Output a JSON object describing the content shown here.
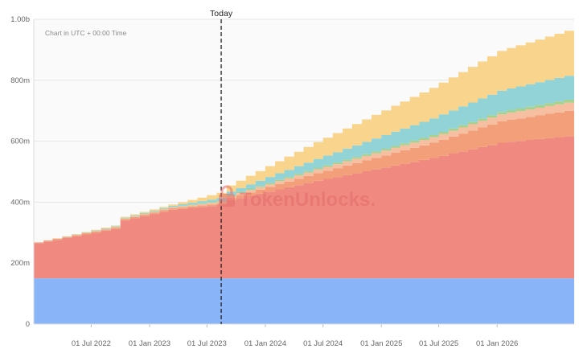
{
  "chart_data": {
    "type": "area",
    "stacked": true,
    "note": "Chart in UTC + 00:00 Time",
    "marker_label": "Today",
    "marker_x": "2023-08-15",
    "watermark": "TokenUnlocks.",
    "x_ticks": [
      "01 Jul 2022",
      "01 Jan 2023",
      "01 Jul 2023",
      "01 Jan 2024",
      "01 Jul 2024",
      "01 Jan 2025",
      "01 Jul 2025",
      "01 Jan 2026"
    ],
    "y_ticks": [
      "0",
      "200m",
      "400m",
      "600m",
      "800m",
      "1.00b"
    ],
    "ylim": [
      0,
      1000
    ],
    "x_range": [
      "2022-01-01",
      "2026-09-01"
    ],
    "grid": true,
    "series": [
      {
        "key": "blue",
        "color": "#8ab4f8",
        "points": [
          [
            "2022-01-01",
            150
          ],
          [
            "2026-09-01",
            150
          ]
        ]
      },
      {
        "key": "red",
        "color": "#f08a80",
        "points": [
          [
            "2022-01-01",
            115
          ],
          [
            "2022-09-15",
            165
          ],
          [
            "2022-10-01",
            190
          ],
          [
            "2023-03-01",
            225
          ],
          [
            "2023-08-15",
            242
          ],
          [
            "2023-08-25",
            255
          ],
          [
            "2024-06-01",
            320
          ],
          [
            "2025-06-01",
            395
          ],
          [
            "2026-01-01",
            445
          ],
          [
            "2026-09-01",
            470
          ]
        ]
      },
      {
        "key": "orange",
        "color": "#f3a07a",
        "points": [
          [
            "2022-01-01",
            3
          ],
          [
            "2023-03-01",
            5
          ],
          [
            "2023-08-15",
            5
          ],
          [
            "2023-08-25",
            7
          ],
          [
            "2024-06-01",
            25
          ],
          [
            "2025-06-01",
            50
          ],
          [
            "2026-01-01",
            70
          ],
          [
            "2026-09-01",
            85
          ]
        ]
      },
      {
        "key": "peach",
        "color": "#f6bfa2",
        "points": [
          [
            "2022-01-01",
            0
          ],
          [
            "2023-03-01",
            3
          ],
          [
            "2023-08-15",
            6
          ],
          [
            "2024-06-01",
            12
          ],
          [
            "2025-06-01",
            18
          ],
          [
            "2026-01-01",
            23
          ],
          [
            "2026-09-01",
            27
          ]
        ]
      },
      {
        "key": "green",
        "color": "#a9d18e",
        "points": [
          [
            "2022-01-01",
            0
          ],
          [
            "2023-03-01",
            2
          ],
          [
            "2023-08-15",
            3
          ],
          [
            "2024-06-01",
            5
          ],
          [
            "2025-06-01",
            7
          ],
          [
            "2026-01-01",
            8
          ],
          [
            "2026-09-01",
            10
          ]
        ]
      },
      {
        "key": "teal",
        "color": "#92d3d7",
        "points": [
          [
            "2022-01-01",
            0
          ],
          [
            "2023-03-01",
            3
          ],
          [
            "2023-08-15",
            10
          ],
          [
            "2024-06-01",
            30
          ],
          [
            "2025-06-01",
            55
          ],
          [
            "2026-01-01",
            70
          ],
          [
            "2026-09-01",
            80
          ]
        ]
      },
      {
        "key": "yellow",
        "color": "#f8d48c",
        "points": [
          [
            "2022-01-01",
            0
          ],
          [
            "2023-03-01",
            4
          ],
          [
            "2023-08-15",
            18
          ],
          [
            "2024-06-01",
            55
          ],
          [
            "2025-06-01",
            100
          ],
          [
            "2026-01-01",
            130
          ],
          [
            "2026-09-01",
            150
          ]
        ]
      }
    ]
  }
}
